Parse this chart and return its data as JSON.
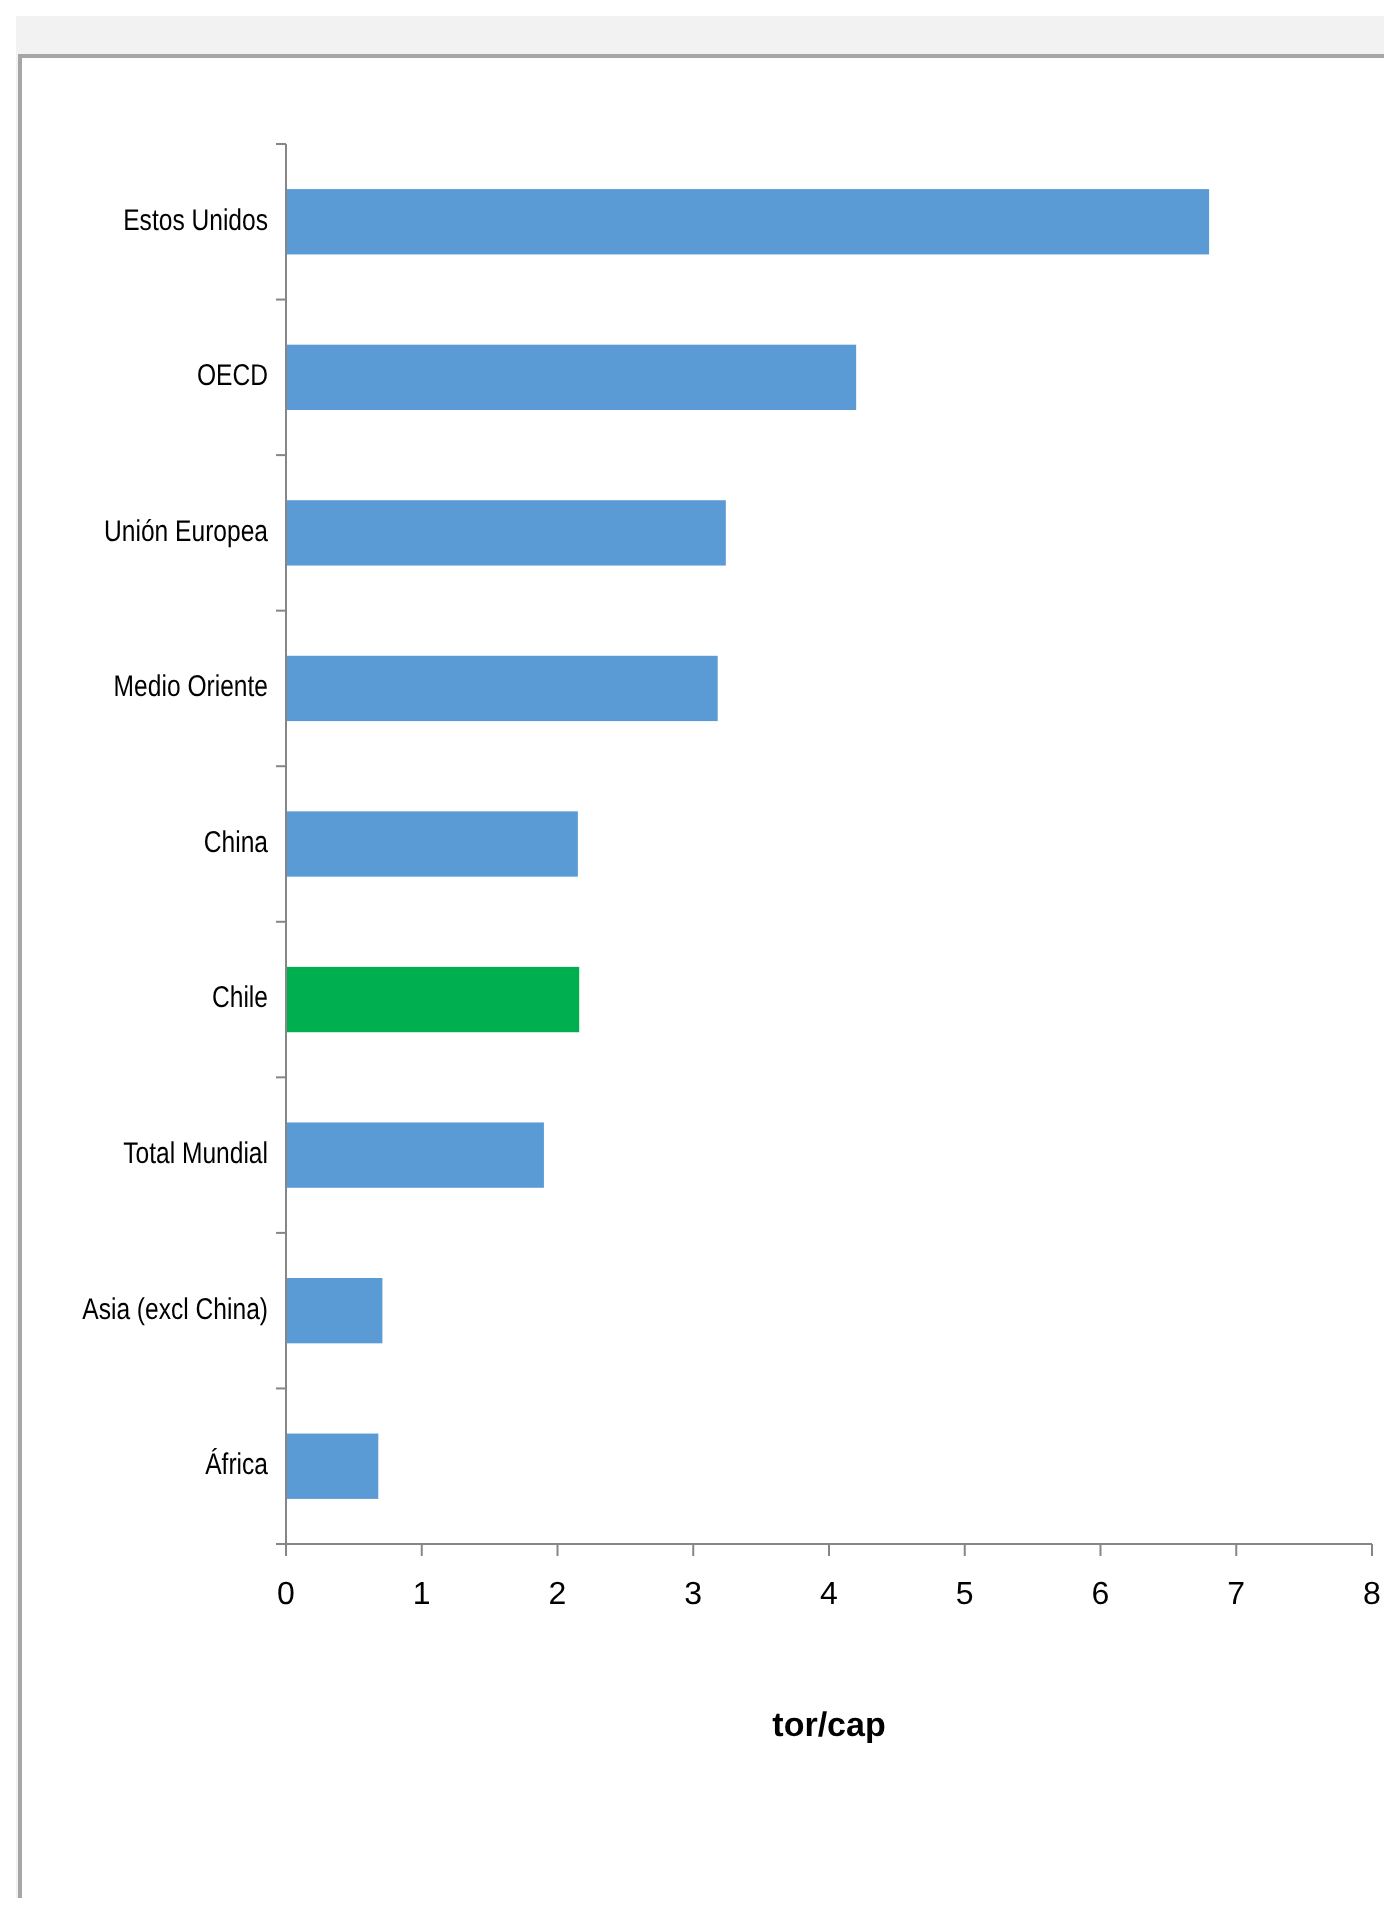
{
  "chart_data": {
    "type": "bar",
    "orientation": "horizontal",
    "xlabel": "tor/cap",
    "categories": [
      "Estos Unidos",
      "OECD",
      "Unión Europea",
      "Medio Oriente",
      "China",
      "Chile",
      "Total Mundial",
      "Asia (excl China)",
      "África"
    ],
    "values": [
      6.8,
      4.2,
      3.24,
      3.18,
      2.15,
      2.16,
      1.9,
      0.71,
      0.68
    ],
    "colors": [
      "#5b9bd5",
      "#5b9bd5",
      "#5b9bd5",
      "#5b9bd5",
      "#5b9bd5",
      "#00b050",
      "#5b9bd5",
      "#5b9bd5",
      "#5b9bd5"
    ],
    "xlim": [
      0,
      8
    ],
    "xticks": [
      0,
      1,
      2,
      3,
      4,
      5,
      6,
      7,
      8
    ]
  }
}
